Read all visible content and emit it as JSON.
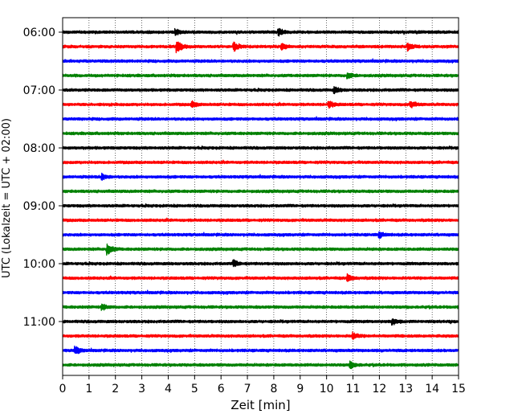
{
  "chart_data": {
    "type": "line",
    "title": "",
    "xlabel": "Zeit  [min]",
    "ylabel": "UTC (Lokalzeit = UTC + 02:00)",
    "xlim": [
      0,
      15
    ],
    "x_ticks": [
      "0",
      "1",
      "2",
      "3",
      "4",
      "5",
      "6",
      "7",
      "8",
      "9",
      "10",
      "11",
      "12",
      "13",
      "14",
      "15"
    ],
    "y_ticks": [
      "06:00",
      "07:00",
      "08:00",
      "09:00",
      "10:00",
      "11:00"
    ],
    "trace_interval_min": 15,
    "trace_count": 24,
    "first_trace_utc": "06:00",
    "color_cycle": [
      "#000000",
      "#ff0000",
      "#0000ff",
      "#008000"
    ],
    "grid": {
      "vertical": "dotted",
      "horizontal": "none"
    },
    "legend": "none",
    "events": [
      {
        "trace": 0,
        "x_min": 4.3,
        "amp": 1.6
      },
      {
        "trace": 0,
        "x_min": 8.2,
        "amp": 1.8
      },
      {
        "trace": 1,
        "x_min": 4.35,
        "amp": 3.2
      },
      {
        "trace": 1,
        "x_min": 6.5,
        "amp": 2.0
      },
      {
        "trace": 1,
        "x_min": 8.3,
        "amp": 1.8
      },
      {
        "trace": 1,
        "x_min": 13.1,
        "amp": 1.8
      },
      {
        "trace": 3,
        "x_min": 10.8,
        "amp": 1.6
      },
      {
        "trace": 4,
        "x_min": 10.3,
        "amp": 1.6
      },
      {
        "trace": 5,
        "x_min": 4.9,
        "amp": 1.5
      },
      {
        "trace": 5,
        "x_min": 10.1,
        "amp": 1.6
      },
      {
        "trace": 5,
        "x_min": 13.2,
        "amp": 1.6
      },
      {
        "trace": 10,
        "x_min": 1.5,
        "amp": 1.5
      },
      {
        "trace": 14,
        "x_min": 12.0,
        "amp": 1.5
      },
      {
        "trace": 15,
        "x_min": 1.7,
        "amp": 3.0
      },
      {
        "trace": 16,
        "x_min": 6.5,
        "amp": 1.5
      },
      {
        "trace": 17,
        "x_min": 10.8,
        "amp": 1.8
      },
      {
        "trace": 19,
        "x_min": 1.5,
        "amp": 1.5
      },
      {
        "trace": 20,
        "x_min": 12.5,
        "amp": 1.6
      },
      {
        "trace": 21,
        "x_min": 11.0,
        "amp": 1.7
      },
      {
        "trace": 22,
        "x_min": 0.5,
        "amp": 1.8
      },
      {
        "trace": 23,
        "x_min": 10.9,
        "amp": 1.8
      }
    ]
  }
}
